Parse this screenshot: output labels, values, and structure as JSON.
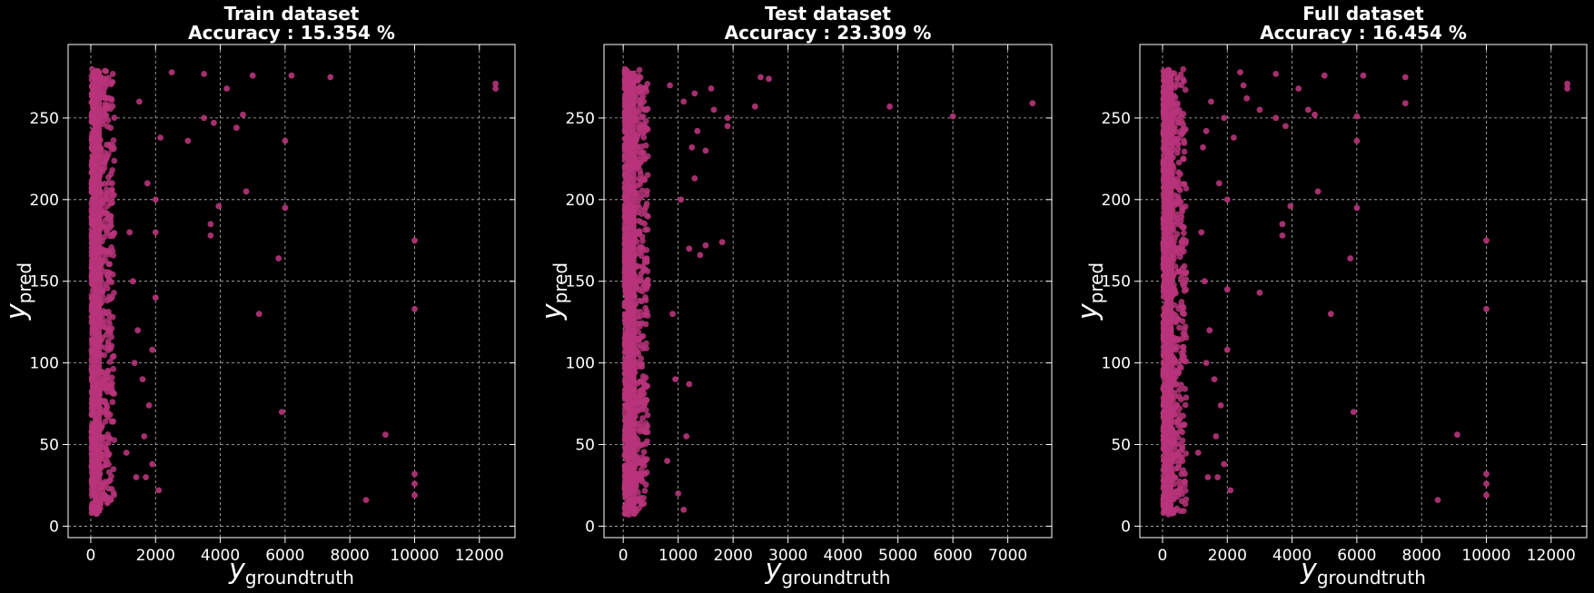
{
  "figure": {
    "background": "#000000",
    "point_color": "#b8347a",
    "axis_color": "#ffffff"
  },
  "chart_data": [
    {
      "type": "scatter",
      "title": "Train dataset",
      "subtitle": "Accuracy : 15.354 %",
      "xlabel": "y",
      "xlabel_sub": "groundtruth",
      "ylabel": "y",
      "ylabel_sub": "pred",
      "xlim": [
        -700,
        13100
      ],
      "ylim": [
        -7,
        295
      ],
      "xticks": [
        0,
        2000,
        4000,
        6000,
        8000,
        10000,
        12000
      ],
      "yticks": [
        0,
        50,
        100,
        150,
        200,
        250
      ],
      "grid": true,
      "series": [
        {
          "color": "#b8347a",
          "points": [
            [
              2100,
              22
            ],
            [
              1900,
              38
            ],
            [
              1800,
              74
            ],
            [
              1900,
              108
            ],
            [
              2000,
              140
            ],
            [
              2000,
              180
            ],
            [
              2000,
              200
            ],
            [
              2150,
              238
            ],
            [
              2500,
              278
            ],
            [
              3000,
              236
            ],
            [
              3500,
              277
            ],
            [
              3500,
              250
            ],
            [
              3700,
              178
            ],
            [
              3700,
              185
            ],
            [
              3800,
              247
            ],
            [
              3950,
              196
            ],
            [
              4200,
              268
            ],
            [
              4500,
              244
            ],
            [
              4700,
              252
            ],
            [
              4800,
              205
            ],
            [
              5000,
              276
            ],
            [
              5200,
              130
            ],
            [
              5800,
              164
            ],
            [
              5900,
              70
            ],
            [
              6000,
              236
            ],
            [
              6000,
              195
            ],
            [
              6200,
              276
            ],
            [
              7400,
              275
            ],
            [
              8500,
              16
            ],
            [
              9100,
              56
            ],
            [
              10000,
              175
            ],
            [
              10000,
              133
            ],
            [
              10000,
              32
            ],
            [
              10000,
              26
            ],
            [
              10000,
              19
            ],
            [
              12500,
              268
            ],
            [
              12500,
              271
            ],
            [
              1200,
              180
            ],
            [
              1300,
              150
            ],
            [
              1450,
              120
            ],
            [
              1600,
              90
            ],
            [
              1700,
              30
            ],
            [
              1500,
              260
            ],
            [
              1750,
              210
            ],
            [
              1650,
              55
            ],
            [
              1400,
              30
            ],
            [
              1100,
              45
            ],
            [
              1350,
              100
            ]
          ]
        }
      ]
    },
    {
      "type": "scatter",
      "title": "Test dataset",
      "subtitle": "Accuracy : 23.309 %",
      "xlabel": "y",
      "xlabel_sub": "groundtruth",
      "ylabel": "y",
      "ylabel_sub": "pred",
      "xlim": [
        -350,
        7800
      ],
      "ylim": [
        -7,
        295
      ],
      "xticks": [
        0,
        1000,
        2000,
        3000,
        4000,
        5000,
        6000,
        7000
      ],
      "yticks": [
        0,
        50,
        100,
        150,
        200,
        250
      ],
      "grid": true,
      "series": [
        {
          "color": "#b8347a",
          "points": [
            [
              1000,
              20
            ],
            [
              1100,
              10
            ],
            [
              1150,
              55
            ],
            [
              1200,
              87
            ],
            [
              1200,
              170
            ],
            [
              1250,
              232
            ],
            [
              1300,
              213
            ],
            [
              1350,
              242
            ],
            [
              1400,
              166
            ],
            [
              1500,
              172
            ],
            [
              1500,
              230
            ],
            [
              1600,
              268
            ],
            [
              1800,
              174
            ],
            [
              1900,
              245
            ],
            [
              1900,
              250
            ],
            [
              2400,
              257
            ],
            [
              2500,
              275
            ],
            [
              2650,
              274
            ],
            [
              4850,
              257
            ],
            [
              6000,
              251
            ],
            [
              7450,
              259
            ],
            [
              900,
              130
            ],
            [
              950,
              90
            ],
            [
              1050,
              200
            ],
            [
              1100,
              260
            ],
            [
              850,
              270
            ],
            [
              1300,
              265
            ],
            [
              1650,
              255
            ],
            [
              800,
              40
            ]
          ]
        }
      ]
    },
    {
      "type": "scatter",
      "title": "Full dataset",
      "subtitle": "Accuracy : 16.454 %",
      "xlabel": "y",
      "xlabel_sub": "groundtruth",
      "ylabel": "y",
      "ylabel_sub": "pred",
      "xlim": [
        -700,
        13100
      ],
      "ylim": [
        -7,
        295
      ],
      "xticks": [
        0,
        2000,
        4000,
        6000,
        8000,
        10000,
        12000
      ],
      "yticks": [
        0,
        50,
        100,
        150,
        200,
        250
      ],
      "grid": true,
      "series": [
        {
          "color": "#b8347a",
          "points": [
            [
              2100,
              22
            ],
            [
              1900,
              38
            ],
            [
              1800,
              74
            ],
            [
              2000,
              108
            ],
            [
              2000,
              145
            ],
            [
              2000,
              200
            ],
            [
              2200,
              238
            ],
            [
              2500,
              270
            ],
            [
              2400,
              278
            ],
            [
              2600,
              262
            ],
            [
              3000,
              143
            ],
            [
              3000,
              255
            ],
            [
              3500,
              277
            ],
            [
              3500,
              250
            ],
            [
              3700,
              178
            ],
            [
              3700,
              185
            ],
            [
              3800,
              245
            ],
            [
              3950,
              196
            ],
            [
              4200,
              268
            ],
            [
              4500,
              255
            ],
            [
              4700,
              252
            ],
            [
              4800,
              205
            ],
            [
              5000,
              276
            ],
            [
              5200,
              130
            ],
            [
              5800,
              164
            ],
            [
              5900,
              70
            ],
            [
              6000,
              251
            ],
            [
              6000,
              236
            ],
            [
              6000,
              195
            ],
            [
              6200,
              276
            ],
            [
              7500,
              275
            ],
            [
              7500,
              259
            ],
            [
              8500,
              16
            ],
            [
              9100,
              56
            ],
            [
              10000,
              175
            ],
            [
              10000,
              133
            ],
            [
              10000,
              32
            ],
            [
              10000,
              26
            ],
            [
              10000,
              19
            ],
            [
              12500,
              268
            ],
            [
              12500,
              271
            ],
            [
              1200,
              180
            ],
            [
              1300,
              150
            ],
            [
              1450,
              120
            ],
            [
              1600,
              90
            ],
            [
              1700,
              30
            ],
            [
              1500,
              260
            ],
            [
              1750,
              210
            ],
            [
              1650,
              55
            ],
            [
              1400,
              30
            ],
            [
              1100,
              45
            ],
            [
              1350,
              100
            ],
            [
              1250,
              232
            ],
            [
              1350,
              242
            ],
            [
              1900,
              250
            ]
          ]
        }
      ]
    }
  ]
}
